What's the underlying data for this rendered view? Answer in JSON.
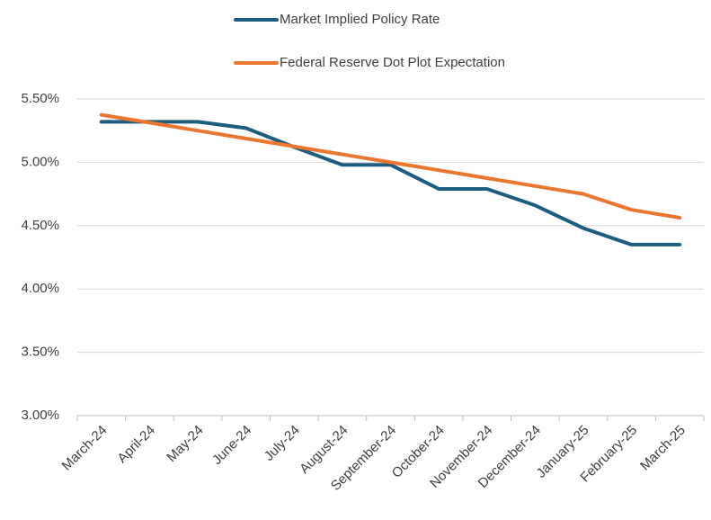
{
  "chart_data": {
    "type": "line",
    "categories": [
      "March-24",
      "April-24",
      "May-24",
      "June-24",
      "July-24",
      "August-24",
      "September-24",
      "October-24",
      "November-24",
      "December-24",
      "January-25",
      "February-25",
      "March-25"
    ],
    "series": [
      {
        "name": "Market Implied Policy Rate",
        "color": "#1f5d7f",
        "values": [
          5.32,
          5.32,
          5.32,
          5.27,
          5.12,
          4.98,
          4.98,
          4.79,
          4.79,
          4.66,
          4.48,
          4.35,
          4.35
        ]
      },
      {
        "name": "Federal Reserve Dot Plot Expectation",
        "color": "#ea7630",
        "values": [
          5.375,
          5.3125,
          5.25,
          5.1875,
          5.125,
          5.0625,
          5.0,
          4.9375,
          4.875,
          4.8125,
          4.75,
          4.625,
          4.5625
        ]
      }
    ],
    "ylim": [
      3.0,
      5.5
    ],
    "yticks": [
      {
        "value": 3.0,
        "label": "3.00%"
      },
      {
        "value": 3.5,
        "label": "3.50%"
      },
      {
        "value": 4.0,
        "label": "4.00%"
      },
      {
        "value": 4.5,
        "label": "4.50%"
      },
      {
        "value": 5.0,
        "label": "5.00%"
      },
      {
        "value": 5.5,
        "label": "5.50%"
      }
    ],
    "grid": true,
    "legend": "top"
  }
}
